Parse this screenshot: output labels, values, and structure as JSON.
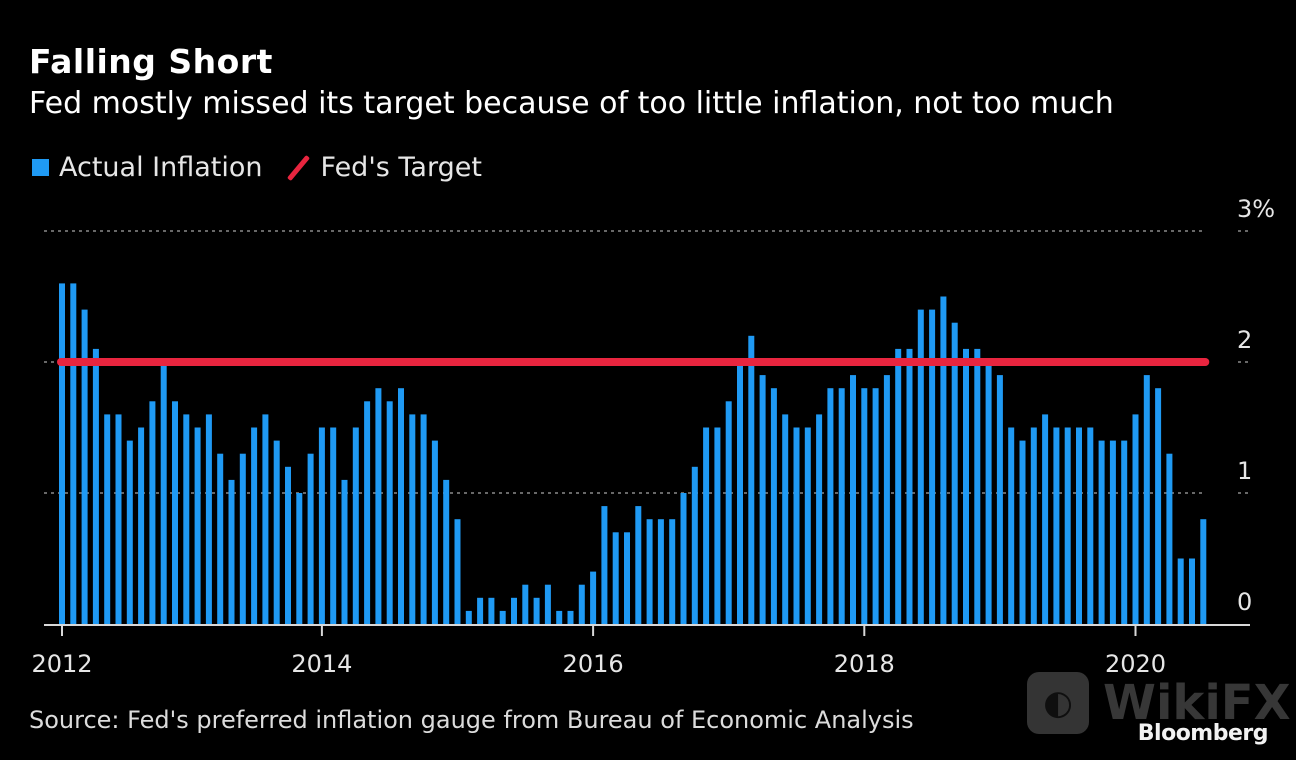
{
  "header": {
    "title": "Falling Short",
    "subtitle": "Fed mostly missed its target because of too little inflation, not too much"
  },
  "legend": {
    "items": [
      {
        "label": "Actual Inflation",
        "type": "bar",
        "color": "#1f9af4"
      },
      {
        "label": "Fed's Target",
        "type": "line",
        "color": "#e8253f"
      }
    ]
  },
  "footer": {
    "source": "Source: Fed's preferred inflation gauge from Bureau of Economic Analysis",
    "brand": "Bloomberg",
    "watermark": "WikiFX"
  },
  "chart_data": {
    "type": "bar",
    "title": "Falling Short",
    "subtitle": "Fed mostly missed its target because of too little inflation, not too much",
    "xlabel": "",
    "ylabel": "",
    "frequency": "monthly",
    "ylim": [
      0,
      3
    ],
    "yticks": [
      {
        "value": 0,
        "label": "0"
      },
      {
        "value": 1,
        "label": "1"
      },
      {
        "value": 2,
        "label": "2"
      },
      {
        "value": 3,
        "label": "3%"
      }
    ],
    "xticks": [
      {
        "index": 0,
        "label": "2012"
      },
      {
        "index": 23,
        "label": "2014"
      },
      {
        "index": 47,
        "label": "2016"
      },
      {
        "index": 71,
        "label": "2018"
      },
      {
        "index": 95,
        "label": "2020"
      }
    ],
    "grid": true,
    "legend_position": "top-left",
    "series": [
      {
        "name": "Actual Inflation",
        "type": "bar",
        "color": "#1f9af4",
        "values": [
          2.6,
          2.6,
          2.4,
          2.1,
          1.6,
          1.6,
          1.4,
          1.5,
          1.7,
          2.0,
          1.7,
          1.6,
          1.5,
          1.6,
          1.3,
          1.1,
          1.3,
          1.5,
          1.6,
          1.4,
          1.2,
          1.0,
          1.3,
          1.5,
          1.5,
          1.1,
          1.5,
          1.7,
          1.8,
          1.7,
          1.8,
          1.6,
          1.6,
          1.4,
          1.1,
          0.8,
          0.1,
          0.2,
          0.2,
          0.1,
          0.2,
          0.3,
          0.2,
          0.3,
          0.1,
          0.1,
          0.3,
          0.4,
          0.9,
          0.7,
          0.7,
          0.9,
          0.8,
          0.8,
          0.8,
          1.0,
          1.2,
          1.5,
          1.5,
          1.7,
          2.0,
          2.2,
          1.9,
          1.8,
          1.6,
          1.5,
          1.5,
          1.6,
          1.8,
          1.8,
          1.9,
          1.8,
          1.8,
          1.9,
          2.1,
          2.1,
          2.4,
          2.4,
          2.5,
          2.3,
          2.1,
          2.1,
          2.0,
          1.9,
          1.5,
          1.4,
          1.5,
          1.6,
          1.5,
          1.5,
          1.5,
          1.5,
          1.4,
          1.4,
          1.4,
          1.6,
          1.9,
          1.8,
          1.3,
          0.5,
          0.5,
          0.8
        ]
      },
      {
        "name": "Fed's Target",
        "type": "line",
        "color": "#e8253f",
        "value": 2.0
      }
    ]
  }
}
